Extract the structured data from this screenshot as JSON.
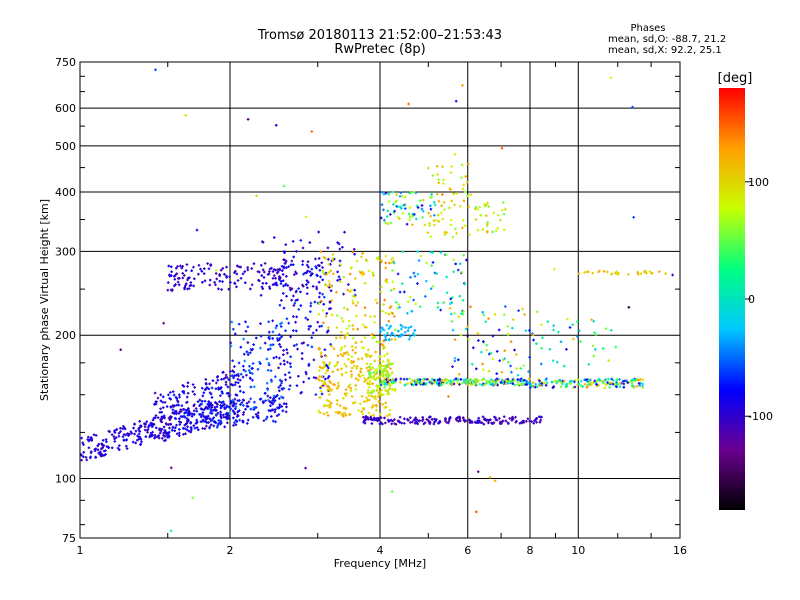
{
  "chart_data": {
    "type": "scatter",
    "title": "Tromsø 20180113 21:52:00–21:53:43",
    "subtitle": "RwPretec (8p)",
    "xlabel": "Frequency [MHz]",
    "ylabel": "Stationary phase Virtual Height [km]",
    "x_scale": "log",
    "y_scale": "log",
    "xlim": [
      1,
      16
    ],
    "ylim": [
      75,
      750
    ],
    "x_ticks": [
      1,
      2,
      4,
      6,
      8,
      10,
      16
    ],
    "x_tick_labels": [
      "1",
      "2",
      "4",
      "6",
      "8",
      "10",
      "16"
    ],
    "y_ticks": [
      75,
      100,
      200,
      300,
      400,
      500,
      600,
      750
    ],
    "y_tick_labels": [
      "75",
      "100",
      "200",
      "300",
      "400",
      "500",
      "600",
      "750"
    ],
    "grid": true,
    "stats": {
      "heading": "Phases",
      "line_o": "mean, sd,O: -88.7, 21.2",
      "line_x": "mean, sd,X:  92.2, 25.1"
    },
    "colorbar": {
      "label": "[deg]",
      "range": [
        -180,
        180
      ],
      "ticks": [
        100,
        0,
        -100
      ],
      "tick_labels": [
        "100",
        "0",
        "-100"
      ],
      "colors": [
        "#000000",
        "#6a0090",
        "#0000ff",
        "#00c8ff",
        "#00ff80",
        "#c8ff00",
        "#ffa000",
        "#ff0000"
      ]
    },
    "clusters": [
      {
        "x": [
          1.0,
          1.6
        ],
        "y": [
          108,
          140
        ],
        "n": 180,
        "phase": [
          -110,
          -80
        ],
        "slope": 0.55
      },
      {
        "x": [
          1.4,
          2.1
        ],
        "y": [
          118,
          172
        ],
        "n": 260,
        "phase": [
          -115,
          -70
        ],
        "slope": 0.35
      },
      {
        "x": [
          1.6,
          2.6
        ],
        "y": [
          125,
          150
        ],
        "n": 180,
        "phase": [
          -110,
          -60
        ],
        "slope": 0.3
      },
      {
        "x": [
          2.0,
          2.6
        ],
        "y": [
          140,
          215
        ],
        "n": 120,
        "phase": [
          -100,
          -40
        ],
        "slope": 0
      },
      {
        "x": [
          2.5,
          3.2
        ],
        "y": [
          150,
          290
        ],
        "n": 160,
        "phase": [
          -110,
          -60
        ],
        "slope": 0
      },
      {
        "x": [
          1.5,
          2.6
        ],
        "y": [
          248,
          285
        ],
        "n": 140,
        "phase": [
          -120,
          -80
        ],
        "slope": 0.08
      },
      {
        "x": [
          2.3,
          3.6
        ],
        "y": [
          235,
          330
        ],
        "n": 70,
        "phase": [
          -120,
          -70
        ],
        "slope": 0
      },
      {
        "x": [
          3.0,
          4.2
        ],
        "y": [
          135,
          190
        ],
        "n": 260,
        "phase": [
          80,
          130
        ],
        "slope": 0
      },
      {
        "x": [
          3.0,
          4.3
        ],
        "y": [
          190,
          300
        ],
        "n": 140,
        "phase": [
          60,
          140
        ],
        "slope": 0
      },
      {
        "x": [
          3.8,
          4.3
        ],
        "y": [
          150,
          175
        ],
        "n": 80,
        "phase": [
          40,
          100
        ],
        "slope": 0
      },
      {
        "x": [
          4.0,
          4.7
        ],
        "y": [
          195,
          210
        ],
        "n": 40,
        "phase": [
          -40,
          -20
        ],
        "slope": 0
      },
      {
        "x": [
          4.0,
          8.0
        ],
        "y": [
          157,
          162
        ],
        "n": 250,
        "phase": [
          -115,
          130
        ],
        "slope": 0
      },
      {
        "x": [
          8.0,
          13.5
        ],
        "y": [
          155,
          162
        ],
        "n": 150,
        "phase": [
          -110,
          140
        ],
        "slope": 0
      },
      {
        "x": [
          3.7,
          8.5
        ],
        "y": [
          130,
          135
        ],
        "n": 200,
        "phase": [
          -120,
          -90
        ],
        "slope": 0
      },
      {
        "x": [
          4.0,
          5.2
        ],
        "y": [
          340,
          400
        ],
        "n": 70,
        "phase": [
          -100,
          120
        ],
        "slope": 0
      },
      {
        "x": [
          5.0,
          6.1
        ],
        "y": [
          320,
          480
        ],
        "n": 60,
        "phase": [
          60,
          130
        ],
        "slope": 0
      },
      {
        "x": [
          4.2,
          6.0
        ],
        "y": [
          220,
          300
        ],
        "n": 70,
        "phase": [
          -90,
          80
        ],
        "slope": 0
      },
      {
        "x": [
          6.2,
          7.2
        ],
        "y": [
          325,
          380
        ],
        "n": 30,
        "phase": [
          40,
          120
        ],
        "slope": 0
      },
      {
        "x": [
          5.5,
          8.5
        ],
        "y": [
          165,
          230
        ],
        "n": 80,
        "phase": [
          -100,
          140
        ],
        "slope": 0
      },
      {
        "x": [
          8.5,
          12.0
        ],
        "y": [
          170,
          220
        ],
        "n": 30,
        "phase": [
          -80,
          130
        ],
        "slope": 0
      },
      {
        "x": [
          10.0,
          15.0
        ],
        "y": [
          268,
          273
        ],
        "n": 30,
        "phase": [
          90,
          130
        ],
        "slope": 0
      },
      {
        "x": [
          1.0,
          16.0
        ],
        "y": [
          75,
          750
        ],
        "n": 40,
        "phase": [
          -160,
          160
        ],
        "slope": 0
      }
    ]
  }
}
